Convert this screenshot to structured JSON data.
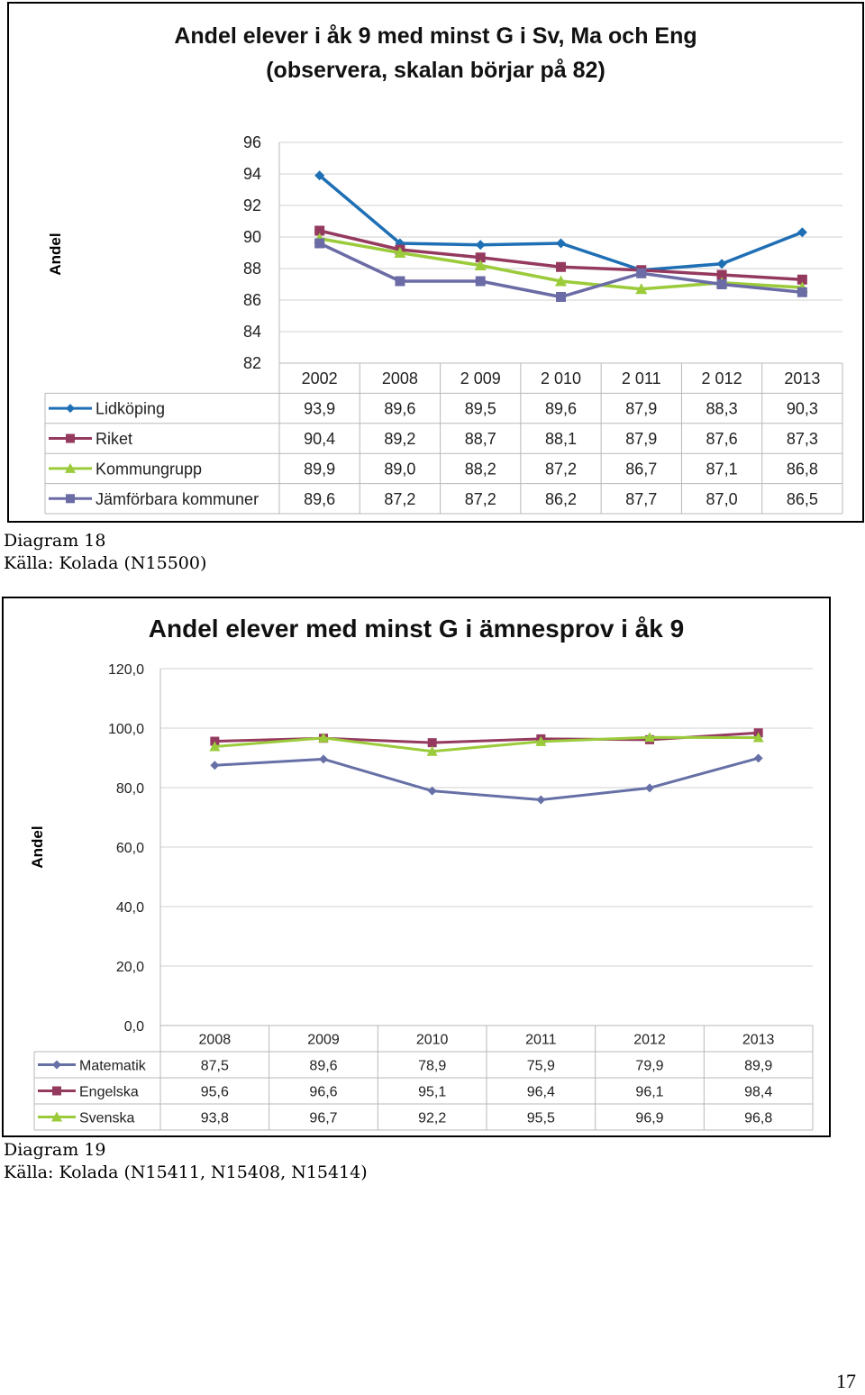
{
  "chart_data": [
    {
      "type": "line",
      "title": "Andel elever i åk 9 med minst G i Sv, Ma och Eng",
      "subtitle": "(observera, skalan börjar på 82)",
      "ylabel": "Andel",
      "xlabel": "",
      "ylim": [
        82,
        96
      ],
      "yticks": [
        "96",
        "94",
        "92",
        "90",
        "88",
        "86",
        "84",
        "82"
      ],
      "categories": [
        "2002",
        "2008",
        "2 009",
        "2 010",
        "2 011",
        "2 012",
        "2013"
      ],
      "grid": true,
      "legend": "data-table",
      "series": [
        {
          "name": "Lidköping",
          "color": "#1F6FB5",
          "marker": "diamond",
          "values": [
            93.9,
            89.6,
            89.5,
            89.6,
            87.9,
            88.3,
            90.3
          ],
          "labels": [
            "93,9",
            "89,6",
            "89,5",
            "89,6",
            "87,9",
            "88,3",
            "90,3"
          ]
        },
        {
          "name": "Riket",
          "color": "#953A5F",
          "marker": "square",
          "values": [
            90.4,
            89.2,
            88.7,
            88.1,
            87.9,
            87.6,
            87.3
          ],
          "labels": [
            "90,4",
            "89,2",
            "88,7",
            "88,1",
            "87,9",
            "87,6",
            "87,3"
          ]
        },
        {
          "name": "Kommungrupp",
          "color": "#9BCB3B",
          "marker": "triangle",
          "values": [
            89.9,
            89.0,
            88.2,
            87.2,
            86.7,
            87.1,
            86.8
          ],
          "labels": [
            "89,9",
            "89,0",
            "88,2",
            "87,2",
            "86,7",
            "87,1",
            "86,8"
          ]
        },
        {
          "name": "Jämförbara kommuner",
          "color": "#6B6BA6",
          "marker": "square",
          "values": [
            89.6,
            87.2,
            87.2,
            86.2,
            87.7,
            87.0,
            86.5
          ],
          "labels": [
            "89,6",
            "87,2",
            "87,2",
            "86,2",
            "87,7",
            "87,0",
            "86,5"
          ]
        }
      ]
    },
    {
      "type": "line",
      "title": "Andel elever med minst G i ämnesprov i åk 9",
      "ylabel": "Andel",
      "xlabel": "",
      "ylim": [
        0,
        120
      ],
      "yticks": [
        "120,0",
        "100,0",
        "80,0",
        "60,0",
        "40,0",
        "20,0",
        "0,0"
      ],
      "categories": [
        "2008",
        "2009",
        "2010",
        "2011",
        "2012",
        "2013"
      ],
      "grid": true,
      "legend": "data-table",
      "series": [
        {
          "name": "Matematik",
          "color": "#6670A6",
          "marker": "diamond",
          "values": [
            87.5,
            89.6,
            78.9,
            75.9,
            79.9,
            89.9
          ],
          "labels": [
            "87,5",
            "89,6",
            "78,9",
            "75,9",
            "79,9",
            "89,9"
          ]
        },
        {
          "name": "Engelska",
          "color": "#953A5F",
          "marker": "square",
          "values": [
            95.6,
            96.6,
            95.1,
            96.4,
            96.1,
            98.4
          ],
          "labels": [
            "95,6",
            "96,6",
            "95,1",
            "96,4",
            "96,1",
            "98,4"
          ]
        },
        {
          "name": "Svenska",
          "color": "#9BCB3B",
          "marker": "triangle",
          "values": [
            93.8,
            96.7,
            92.2,
            95.5,
            96.9,
            96.8
          ],
          "labels": [
            "93,8",
            "96,7",
            "92,2",
            "95,5",
            "96,9",
            "96,8"
          ]
        }
      ]
    }
  ],
  "captions": {
    "c1_line1": "Diagram 18",
    "c1_line2": "Källa: Kolada (N15500)",
    "c2_line1": "Diagram 19",
    "c2_line2": "Källa: Kolada (N15411, N15408, N15414)"
  },
  "page_number": "17"
}
